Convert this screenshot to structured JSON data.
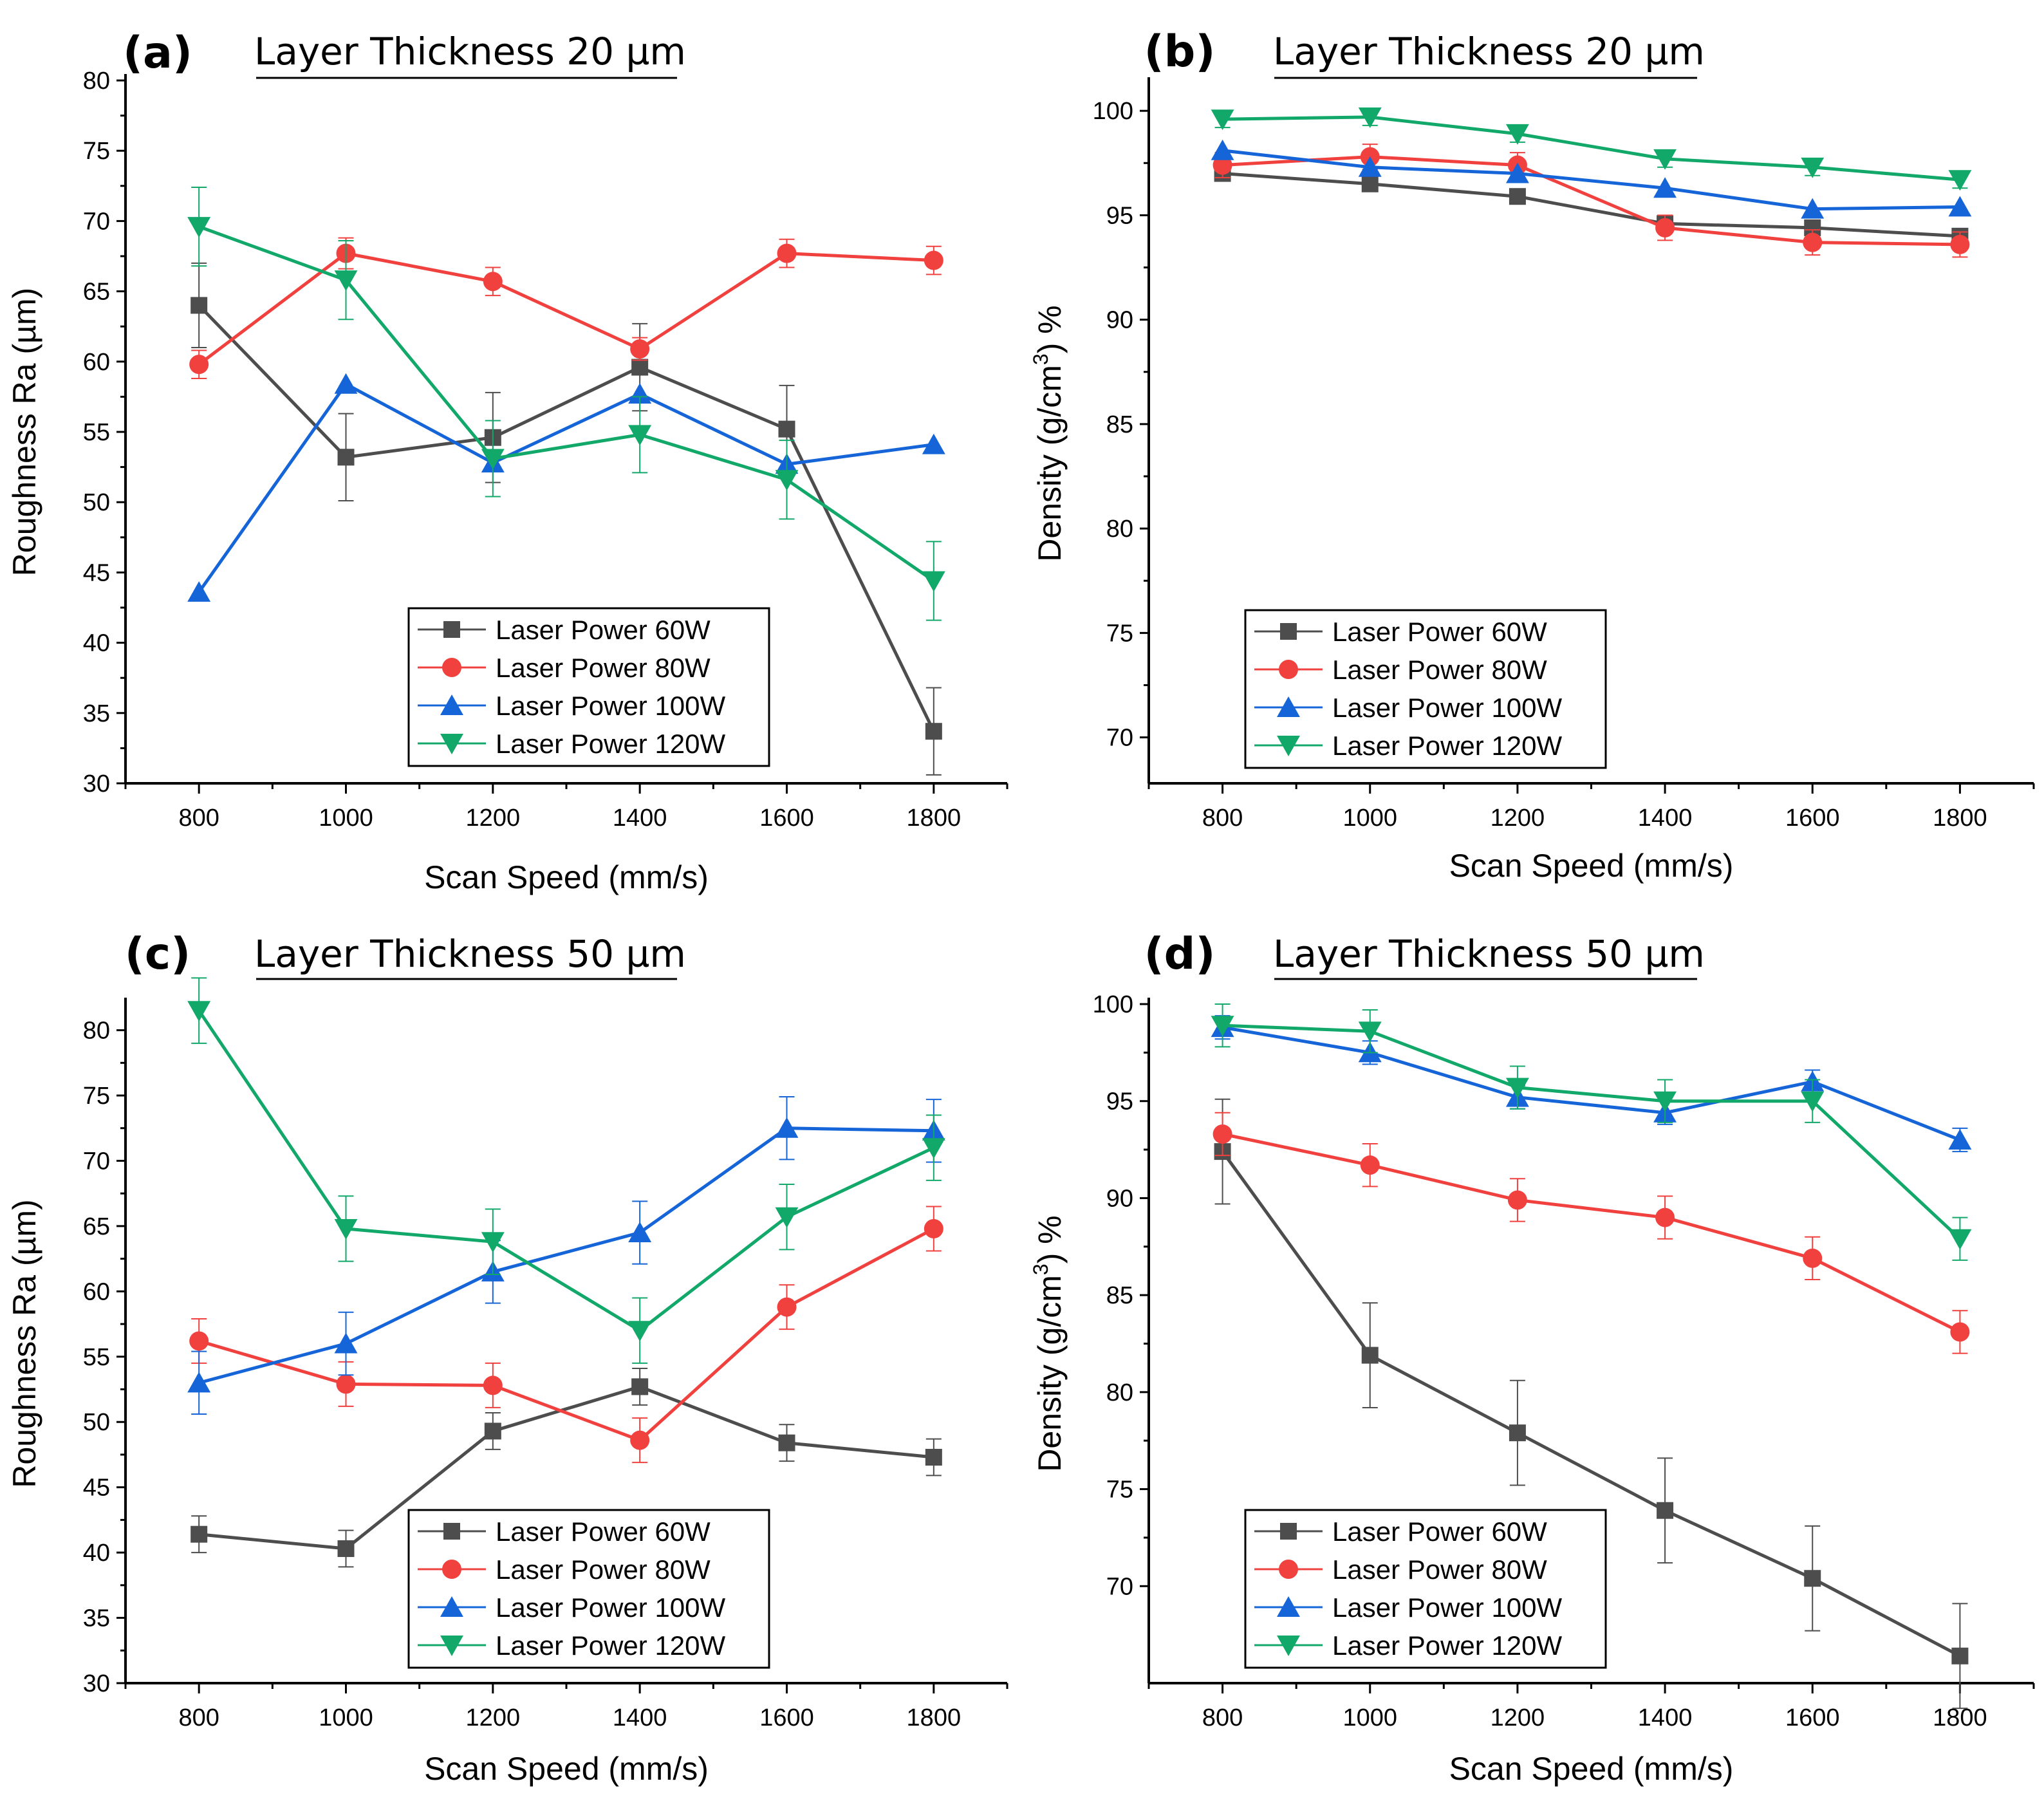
{
  "colors": {
    "lp60": "#4d4d4d",
    "lp80": "#f0413f",
    "lp100": "#1565d8",
    "lp120": "#11a86a"
  },
  "chart_data": [
    {
      "panel": "(a)",
      "title": "Layer Thickness 20 µm",
      "type": "line",
      "xlabel": "Scan Speed (mm/s)",
      "ylabel": "Roughness Ra (µm)",
      "xlim": [
        700,
        1900
      ],
      "ylim": [
        30,
        80
      ],
      "xticks": [
        800,
        1000,
        1200,
        1400,
        1600,
        1800
      ],
      "yticks": [
        30,
        35,
        40,
        45,
        50,
        55,
        60,
        65,
        70,
        75,
        80
      ],
      "x": [
        800,
        1000,
        1200,
        1400,
        1600,
        1800
      ],
      "legend_position": "bottom-right",
      "series": [
        {
          "name": "Laser Power 60W",
          "marker": "square",
          "color": "#4d4d4d",
          "values": [
            64.0,
            53.2,
            54.6,
            59.6,
            55.2,
            33.7
          ],
          "errors": [
            3.0,
            3.1,
            3.2,
            3.1,
            3.1,
            3.1
          ]
        },
        {
          "name": "Laser Power 80W",
          "marker": "circle",
          "color": "#f0413f",
          "values": [
            59.8,
            67.7,
            65.7,
            60.9,
            67.7,
            67.2
          ],
          "errors": [
            1.0,
            1.1,
            1.0,
            0.8,
            1.0,
            1.0
          ]
        },
        {
          "name": "Laser Power 100W",
          "marker": "triangle-up",
          "color": "#1565d8",
          "values": [
            43.6,
            58.4,
            52.8,
            57.7,
            52.7,
            54.1
          ],
          "errors": [
            0,
            0,
            0,
            0,
            0,
            0
          ]
        },
        {
          "name": "Laser Power 120W",
          "marker": "triangle-down",
          "color": "#11a86a",
          "values": [
            69.6,
            65.8,
            53.1,
            54.8,
            51.6,
            44.4
          ],
          "errors": [
            2.8,
            2.8,
            2.7,
            2.7,
            2.8,
            2.8
          ]
        }
      ]
    },
    {
      "panel": "(b)",
      "title": "Layer Thickness 20 µm",
      "type": "line",
      "xlabel": "Scan Speed (mm/s)",
      "ylabel": "Density (g/cm3) %",
      "xlim": [
        700,
        1900
      ],
      "ylim": [
        67.8,
        101.3
      ],
      "xticks": [
        800,
        1000,
        1200,
        1400,
        1600,
        1800
      ],
      "yticks": [
        70,
        75,
        80,
        85,
        90,
        95,
        100
      ],
      "x": [
        800,
        1000,
        1200,
        1400,
        1600,
        1800
      ],
      "legend_position": "bottom-left",
      "series": [
        {
          "name": "Laser Power 60W",
          "marker": "square",
          "color": "#4d4d4d",
          "values": [
            97.0,
            96.5,
            95.9,
            94.6,
            94.4,
            94.0
          ],
          "errors": [
            0.3,
            0.3,
            0.3,
            0.3,
            0.3,
            0.3
          ]
        },
        {
          "name": "Laser Power 80W",
          "marker": "circle",
          "color": "#f0413f",
          "values": [
            97.4,
            97.8,
            97.4,
            94.4,
            93.7,
            93.6
          ],
          "errors": [
            0.6,
            0.6,
            0.6,
            0.6,
            0.6,
            0.6
          ]
        },
        {
          "name": "Laser Power 100W",
          "marker": "triangle-up",
          "color": "#1565d8",
          "values": [
            98.1,
            97.3,
            97.0,
            96.3,
            95.3,
            95.4
          ],
          "errors": [
            0,
            0,
            0,
            0,
            0,
            0
          ]
        },
        {
          "name": "Laser Power 120W",
          "marker": "triangle-down",
          "color": "#11a86a",
          "values": [
            99.6,
            99.7,
            98.9,
            97.7,
            97.3,
            96.7
          ],
          "errors": [
            0.4,
            0.4,
            0.4,
            0.4,
            0.4,
            0.4
          ]
        }
      ]
    },
    {
      "panel": "(c)",
      "title": "Layer Thickness 50 µm",
      "type": "line",
      "xlabel": "Scan Speed (mm/s)",
      "ylabel": "Roughness Ra (µm)",
      "xlim": [
        700,
        1900
      ],
      "ylim": [
        30,
        82
      ],
      "xticks": [
        800,
        1000,
        1200,
        1400,
        1600,
        1800
      ],
      "yticks": [
        30,
        35,
        40,
        45,
        50,
        55,
        60,
        65,
        70,
        75,
        80
      ],
      "x": [
        800,
        1000,
        1200,
        1400,
        1600,
        1800
      ],
      "legend_position": "bottom-right",
      "series": [
        {
          "name": "Laser Power 60W",
          "marker": "square",
          "color": "#4d4d4d",
          "values": [
            41.4,
            40.3,
            49.3,
            52.7,
            48.4,
            47.3
          ],
          "errors": [
            1.4,
            1.4,
            1.4,
            1.4,
            1.4,
            1.4
          ]
        },
        {
          "name": "Laser Power 80W",
          "marker": "circle",
          "color": "#f0413f",
          "values": [
            56.2,
            52.9,
            52.8,
            48.6,
            58.8,
            64.8
          ],
          "errors": [
            1.7,
            1.7,
            1.7,
            1.7,
            1.7,
            1.7
          ]
        },
        {
          "name": "Laser Power 100W",
          "marker": "triangle-up",
          "color": "#1565d8",
          "values": [
            53.0,
            56.0,
            61.5,
            64.5,
            72.5,
            72.3
          ],
          "errors": [
            2.4,
            2.4,
            2.4,
            2.4,
            2.4,
            2.4
          ]
        },
        {
          "name": "Laser Power 120W",
          "marker": "triangle-down",
          "color": "#11a86a",
          "values": [
            81.5,
            64.8,
            63.8,
            57.0,
            65.7,
            71.0
          ],
          "errors": [
            2.5,
            2.5,
            2.5,
            2.5,
            2.5,
            2.5
          ]
        }
      ]
    },
    {
      "panel": "(d)",
      "title": "Layer Thickness 50 µm",
      "type": "line",
      "xlabel": "Scan Speed (mm/s)",
      "ylabel": "Density (g/cm3) %",
      "xlim": [
        700,
        1900
      ],
      "ylim": [
        65,
        100
      ],
      "xticks": [
        800,
        1000,
        1200,
        1400,
        1600,
        1800
      ],
      "yticks": [
        70,
        75,
        80,
        85,
        90,
        95,
        100
      ],
      "x": [
        800,
        1000,
        1200,
        1400,
        1600,
        1800
      ],
      "legend_position": "bottom-left",
      "series": [
        {
          "name": "Laser Power 60W",
          "marker": "square",
          "color": "#4d4d4d",
          "values": [
            92.4,
            81.9,
            77.9,
            73.9,
            70.4,
            66.4
          ],
          "errors": [
            2.7,
            2.7,
            2.7,
            2.7,
            2.7,
            2.7
          ]
        },
        {
          "name": "Laser Power 80W",
          "marker": "circle",
          "color": "#f0413f",
          "values": [
            93.3,
            91.7,
            89.9,
            89.0,
            86.9,
            83.1
          ],
          "errors": [
            1.1,
            1.1,
            1.1,
            1.1,
            1.1,
            1.1
          ]
        },
        {
          "name": "Laser Power 100W",
          "marker": "triangle-up",
          "color": "#1565d8",
          "values": [
            98.8,
            97.5,
            95.2,
            94.4,
            96.0,
            93.0
          ],
          "errors": [
            0.6,
            0.6,
            0.6,
            0.6,
            0.6,
            0.6
          ]
        },
        {
          "name": "Laser Power 120W",
          "marker": "triangle-down",
          "color": "#11a86a",
          "values": [
            98.9,
            98.6,
            95.7,
            95.0,
            95.0,
            87.9
          ],
          "errors": [
            1.1,
            1.1,
            1.1,
            1.1,
            1.1,
            1.1
          ]
        }
      ]
    }
  ]
}
